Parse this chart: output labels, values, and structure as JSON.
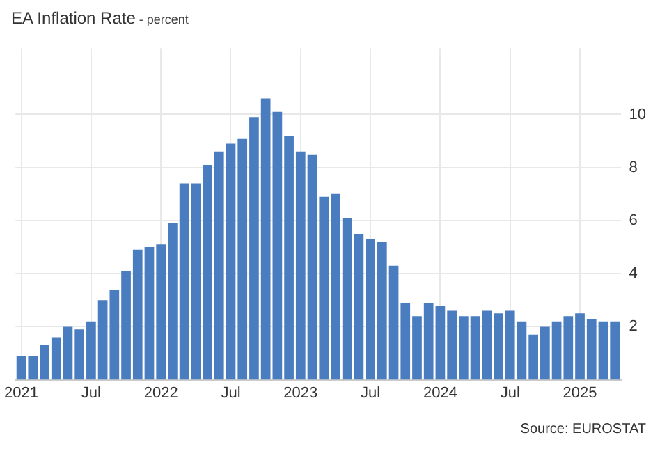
{
  "chart_data": {
    "type": "bar",
    "title": "EA Inflation Rate",
    "subtitle": "- percent",
    "categories": [
      "2021",
      null,
      null,
      null,
      null,
      null,
      "Jul",
      null,
      null,
      null,
      null,
      null,
      "2022",
      null,
      null,
      null,
      null,
      null,
      "Jul",
      null,
      null,
      null,
      null,
      null,
      "2023",
      null,
      null,
      null,
      null,
      null,
      "Jul",
      null,
      null,
      null,
      null,
      null,
      "2024",
      null,
      null,
      null,
      null,
      null,
      "Jul",
      null,
      null,
      null,
      null,
      null,
      "2025",
      null,
      null,
      null
    ],
    "values": [
      0.9,
      0.9,
      1.3,
      1.6,
      2.0,
      1.9,
      2.2,
      3.0,
      3.4,
      4.1,
      4.9,
      5.0,
      5.1,
      5.9,
      7.4,
      7.4,
      8.1,
      8.6,
      8.9,
      9.1,
      9.9,
      10.6,
      10.1,
      9.2,
      8.6,
      8.5,
      6.9,
      7.0,
      6.1,
      5.5,
      5.3,
      5.2,
      4.3,
      2.9,
      2.4,
      2.9,
      2.8,
      2.6,
      2.4,
      2.4,
      2.6,
      2.5,
      2.6,
      2.2,
      1.7,
      2.0,
      2.2,
      2.4,
      2.5,
      2.3,
      2.2,
      2.2
    ],
    "color": "#4a7dbf",
    "ylim": [
      0,
      12.5
    ],
    "yticks": [
      2,
      4,
      6,
      8,
      10
    ],
    "grid": true,
    "annotations": [
      "Source: EUROSTAT"
    ]
  }
}
